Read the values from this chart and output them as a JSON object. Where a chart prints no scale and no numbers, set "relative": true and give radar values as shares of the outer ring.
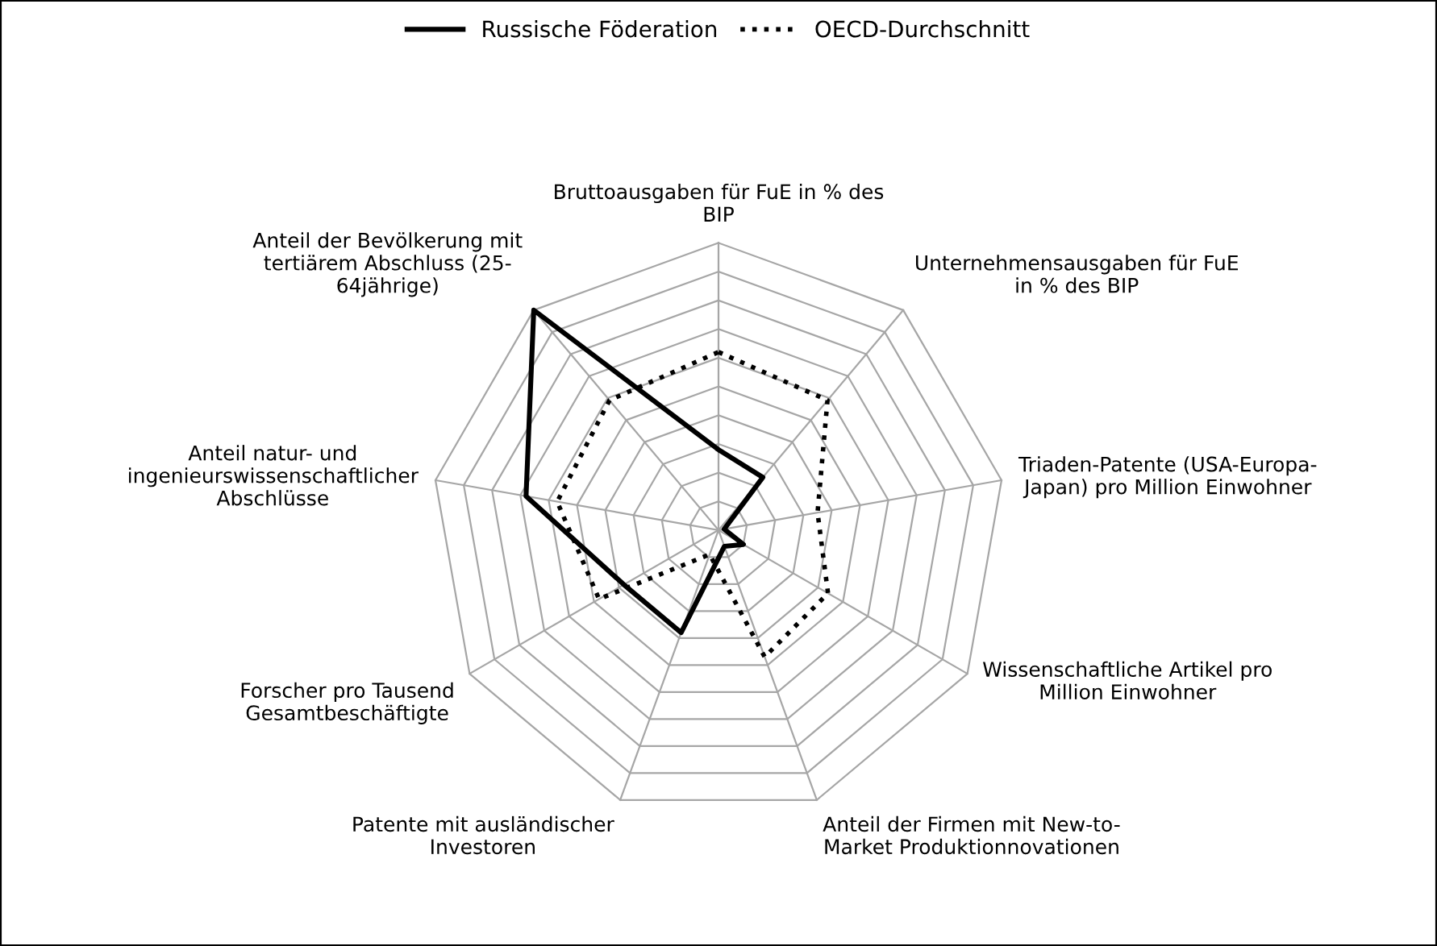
{
  "chart_data": {
    "type": "radar",
    "relative": true,
    "grid": true,
    "legend": "top",
    "categories": [
      "Bruttoausgaben für FuE in % des\nBIP",
      "Unternehmensausgaben für FuE\nin % des BIP",
      "Triaden-Patente (USA-Europa-\nJapan) pro Million Einwohner",
      "Wissenschaftliche Artikel pro\nMillion Einwohner",
      "Anteil der Firmen mit New-to-\nMarket Produktionnovationen",
      "Patente mit ausländischer\nInvestoren",
      "Forscher pro Tausend\nGesamtbeschäftigte",
      "Anteil natur- und\ningenieurswissenschaftlicher\nAbschlüsse",
      "Anteil der Bevölkerung mit\ntertiärem Abschluss (25-\n64jährige)"
    ],
    "series": [
      {
        "name": "Russische Föderation",
        "color": "#000000",
        "line_style": "solid",
        "values": [
          0.28,
          0.24,
          0.02,
          0.1,
          0.06,
          0.38,
          0.38,
          0.68,
          1.0
        ]
      },
      {
        "name": "OECD-Durchschnitt",
        "color": "#000000",
        "line_style": "dotted",
        "values": [
          0.62,
          0.59,
          0.35,
          0.44,
          0.47,
          0.09,
          0.48,
          0.57,
          0.59
        ]
      }
    ]
  }
}
